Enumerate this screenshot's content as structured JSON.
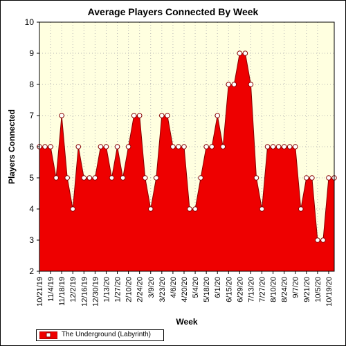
{
  "chart_data": {
    "type": "area",
    "title": "Average Players Connected By Week",
    "xlabel": "Week",
    "ylabel": "Players Connected",
    "ylim": [
      2,
      10
    ],
    "yticks": [
      "2",
      "3",
      "4",
      "5",
      "6",
      "7",
      "8",
      "9",
      "10"
    ],
    "grid": true,
    "legend_position": "bottom-left",
    "colors": {
      "area_fill": "#ee0000",
      "line": "#880000",
      "plot_background": "#ffffe0",
      "grid": "#b4b4b4",
      "marker_fill": "#ffffff"
    },
    "x_tick_labels": [
      "10/21/19",
      "11/4/19",
      "11/18/19",
      "12/2/19",
      "12/16/19",
      "12/30/19",
      "1/13/20",
      "1/27/20",
      "2/10/20",
      "2/24/20",
      "3/9/20",
      "3/23/20",
      "4/6/20",
      "4/20/20",
      "5/4/20",
      "5/18/20",
      "6/1/20",
      "6/15/20",
      "6/29/20",
      "7/13/20",
      "7/27/20",
      "8/10/20",
      "8/24/20",
      "9/7/20",
      "9/21/20",
      "10/5/20",
      "10/19/20"
    ],
    "series": [
      {
        "name": "The Underground (Labyrinth)",
        "values": [
          6,
          6,
          6,
          5,
          7,
          5,
          4,
          6,
          5,
          5,
          5,
          6,
          6,
          5,
          6,
          5,
          6,
          7,
          7,
          5,
          4,
          5,
          7,
          7,
          6,
          6,
          6,
          4,
          4,
          5,
          6,
          6,
          7,
          6,
          8,
          8,
          9,
          9,
          8,
          5,
          4,
          6,
          6,
          6,
          6,
          6,
          6,
          4,
          5,
          5,
          3,
          3,
          5,
          5
        ]
      }
    ]
  }
}
